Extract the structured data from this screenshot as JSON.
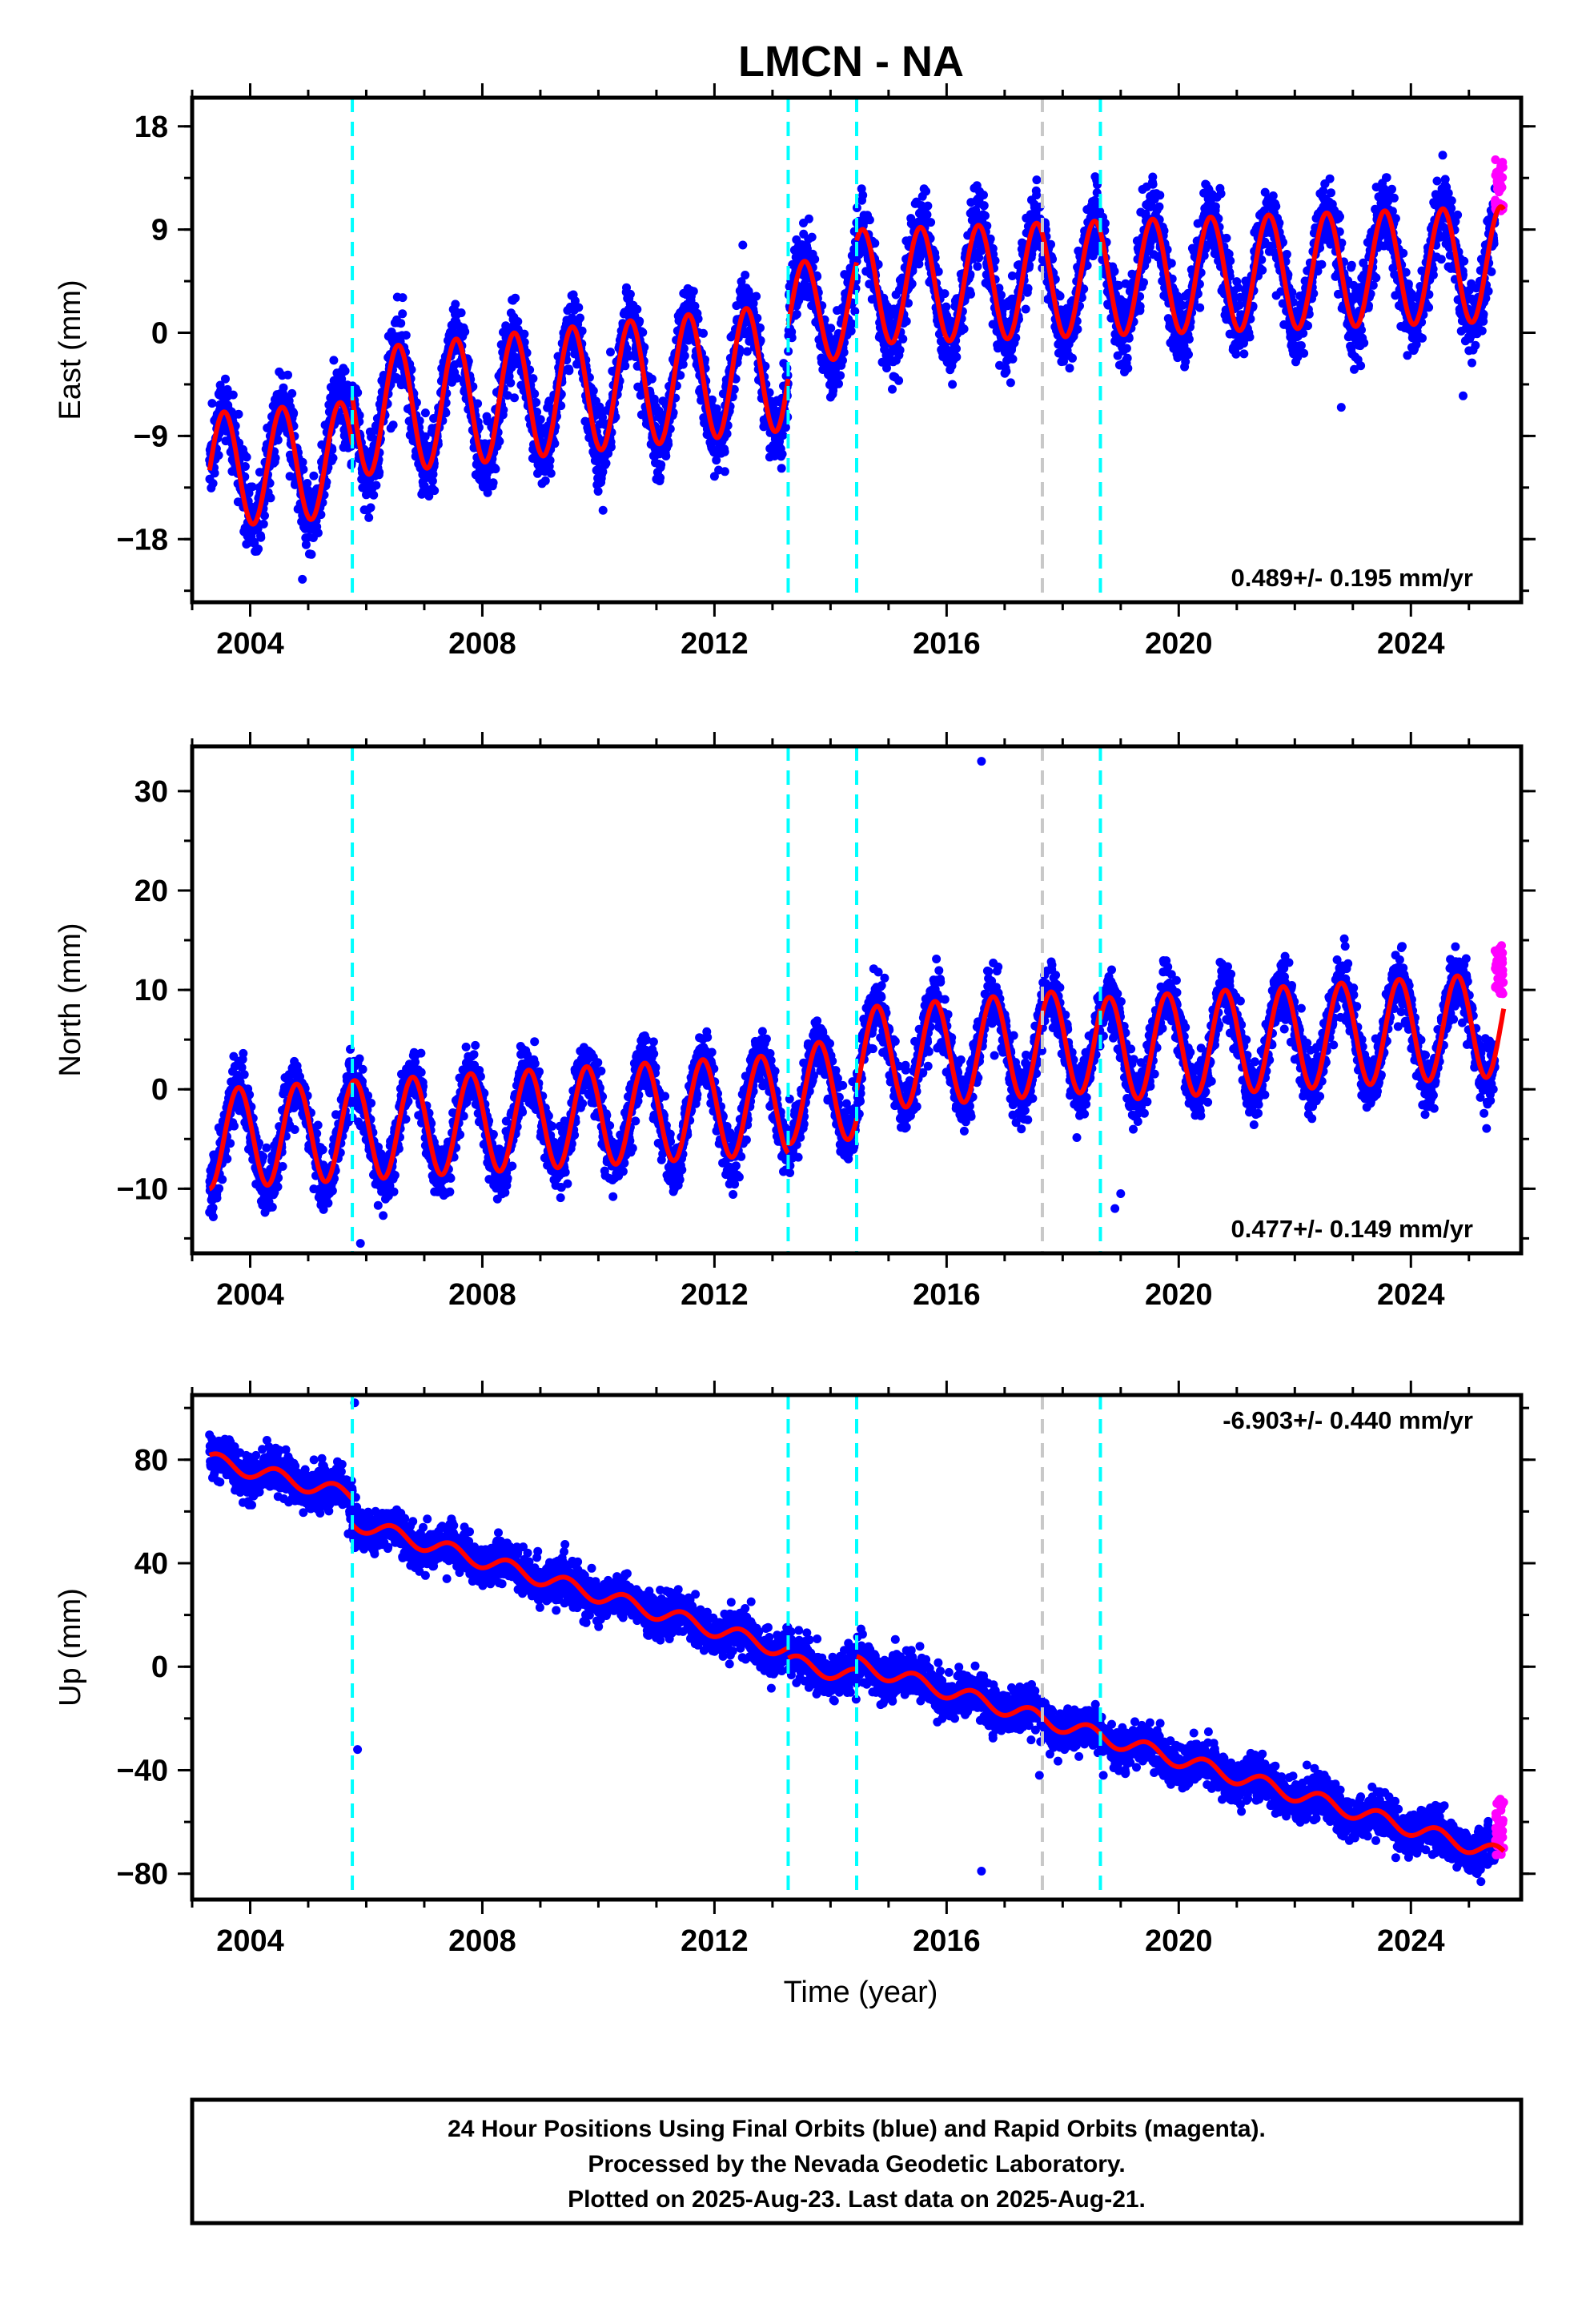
{
  "title": "LMCN - NA",
  "colors": {
    "final_points": "#0000ff",
    "rapid_points": "#ff00ff",
    "model": "#ff0000",
    "equipment_change": "#00ffff",
    "other_event": "#c8c8c8"
  },
  "chart_data": [
    {
      "type": "scatter",
      "name": "east",
      "ylabel": "East (mm)",
      "xlabel": "",
      "xlim": [
        2003.0,
        2025.9
      ],
      "ylim": [
        -23.5,
        20.5
      ],
      "x_ticks": [
        2004,
        2008,
        2012,
        2016,
        2020,
        2024
      ],
      "y_ticks": [
        -18,
        -9,
        0,
        9,
        18
      ],
      "y_tick_labels": [
        "−18",
        "−9",
        "0",
        "9",
        "18"
      ],
      "rate_label": "0.489+/- 0.195 mm/yr",
      "rate_position": "bottom-right",
      "model": {
        "series": [
          {
            "start": 2003.3,
            "end": 2005.76,
            "mean_start": -12,
            "mean_end": -11,
            "amplitude": 5.0,
            "phase": 0.3
          },
          {
            "start": 2005.76,
            "end": 2013.27,
            "mean_start": -7,
            "mean_end": -3,
            "amplitude": 5.5,
            "phase": 0.3
          },
          {
            "start": 2013.27,
            "end": 2014.45,
            "mean_start": 1.5,
            "mean_end": 2.5,
            "amplitude": 4.5,
            "phase": 0.3
          },
          {
            "start": 2014.45,
            "end": 2025.6,
            "mean_start": 4,
            "mean_end": 6,
            "amplitude": 5.0,
            "phase": 0.3
          }
        ]
      },
      "noise": 1.6,
      "rapid": {
        "start": 2025.45,
        "end": 2025.6,
        "mean": 13,
        "spread": 5
      },
      "outliers": [
        [
          2004.9,
          -21.5
        ],
        [
          2016.1,
          -4.5
        ],
        [
          2022.8,
          -6.5
        ],
        [
          2024.9,
          -5.5
        ]
      ]
    },
    {
      "type": "scatter",
      "name": "north",
      "ylabel": "North (mm)",
      "xlabel": "",
      "xlim": [
        2003.0,
        2025.9
      ],
      "ylim": [
        -16.5,
        34.5
      ],
      "x_ticks": [
        2004,
        2008,
        2012,
        2016,
        2020,
        2024
      ],
      "y_ticks": [
        -10,
        0,
        10,
        20,
        30
      ],
      "y_tick_labels": [
        "−10",
        "0",
        "10",
        "20",
        "30"
      ],
      "rate_label": "0.477+/- 0.149 mm/yr",
      "rate_position": "bottom-right",
      "model": {
        "series": [
          {
            "start": 2003.3,
            "end": 2013.27,
            "mean_start": -5,
            "mean_end": -1.5,
            "amplitude": 5.0,
            "phase": 0.55
          },
          {
            "start": 2013.27,
            "end": 2014.45,
            "mean_start": -0.5,
            "mean_end": 0,
            "amplitude": 5.0,
            "phase": 0.55
          },
          {
            "start": 2014.45,
            "end": 2018.65,
            "mean_start": 3,
            "mean_end": 5,
            "amplitude": 5.2,
            "phase": 0.55
          },
          {
            "start": 2018.65,
            "end": 2025.6,
            "mean_start": 4,
            "mean_end": 6.5,
            "amplitude": 5.2,
            "phase": 0.55
          }
        ]
      },
      "noise": 1.5,
      "rapid": {
        "start": 2025.45,
        "end": 2025.6,
        "mean": 12,
        "spread": 5
      },
      "outliers": [
        [
          2016.6,
          33
        ],
        [
          2005.9,
          -15.5
        ],
        [
          2019.0,
          -10.5
        ],
        [
          2018.9,
          -12
        ]
      ]
    },
    {
      "type": "scatter",
      "name": "up",
      "ylabel": "Up (mm)",
      "xlabel": "Time (year)",
      "xlim": [
        2003.0,
        2025.9
      ],
      "ylim": [
        -90,
        105
      ],
      "x_ticks": [
        2004,
        2008,
        2012,
        2016,
        2020,
        2024
      ],
      "y_ticks": [
        -80,
        -40,
        0,
        40,
        80
      ],
      "y_tick_labels": [
        "−80",
        "−40",
        "0",
        "40",
        "80"
      ],
      "rate_label": "-6.903+/- 0.440 mm/yr",
      "rate_position": "top-right",
      "model": {
        "series": [
          {
            "start": 2003.3,
            "end": 2005.76,
            "mean_start": 80,
            "mean_end": 66,
            "amplitude": 3,
            "phase": 0.2
          },
          {
            "start": 2005.76,
            "end": 2013.27,
            "mean_start": 56,
            "mean_end": 6,
            "amplitude": 3,
            "phase": 0.2
          },
          {
            "start": 2013.27,
            "end": 2014.45,
            "mean_start": 2,
            "mean_end": -4,
            "amplitude": 3,
            "phase": 0.2
          },
          {
            "start": 2014.45,
            "end": 2025.6,
            "mean_start": 1,
            "mean_end": -73,
            "amplitude": 3,
            "phase": 0.2
          }
        ]
      },
      "noise": 4,
      "rapid": {
        "start": 2025.45,
        "end": 2025.6,
        "mean": -62,
        "spread": 22
      },
      "outliers": [
        [
          2005.8,
          102
        ],
        [
          2005.85,
          -32
        ],
        [
          2016.6,
          -79
        ],
        [
          2017.6,
          -42
        ],
        [
          2018.7,
          -42
        ]
      ]
    }
  ],
  "events": {
    "cyan": [
      2005.76,
      2013.27,
      2014.45,
      2018.65
    ],
    "gray": [
      2017.65
    ]
  },
  "footer": {
    "line1": "24 Hour Positions Using Final Orbits (blue) and Rapid Orbits (magenta).",
    "line2": "Processed by the Nevada Geodetic Laboratory.",
    "line3": "Plotted on 2025-Aug-23. Last data on 2025-Aug-21."
  }
}
